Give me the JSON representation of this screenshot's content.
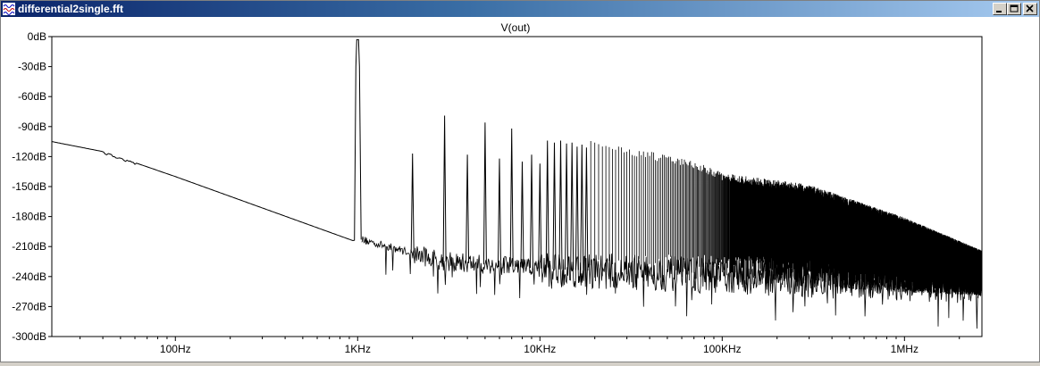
{
  "window": {
    "title": "differential2single.fft",
    "controls": [
      "minimize",
      "maximize",
      "close"
    ]
  },
  "chart_data": {
    "type": "line",
    "title": "V(out)",
    "xscale": "log",
    "xlim": [
      21,
      2660000
    ],
    "ylim": [
      -300,
      0
    ],
    "grid": false,
    "y_ticks": [
      0,
      -30,
      -60,
      -90,
      -120,
      -150,
      -180,
      -210,
      -240,
      -270,
      -300
    ],
    "y_tick_labels": [
      "0dB",
      "-30dB",
      "-60dB",
      "-90dB",
      "-120dB",
      "-150dB",
      "-180dB",
      "-210dB",
      "-240dB",
      "-270dB",
      "-300dB"
    ],
    "x_ticks": [
      100,
      1000,
      10000,
      100000,
      1000000
    ],
    "x_tick_labels": [
      "100Hz",
      "1KHz",
      "10KHz",
      "100KHz",
      "1MHz"
    ],
    "fundamental_hz": 1000,
    "harmonic_peaks": [
      {
        "f": 1000,
        "db": -3
      },
      {
        "f": 2000,
        "db": -117
      },
      {
        "f": 3000,
        "db": -79
      },
      {
        "f": 4000,
        "db": -118
      },
      {
        "f": 5000,
        "db": -86
      },
      {
        "f": 6000,
        "db": -122
      },
      {
        "f": 7000,
        "db": -92
      },
      {
        "f": 8000,
        "db": -125
      },
      {
        "f": 9000,
        "db": -118
      },
      {
        "f": 10000,
        "db": -127
      },
      {
        "f": 11000,
        "db": -104
      },
      {
        "f": 12000,
        "db": -106
      },
      {
        "f": 13000,
        "db": -104
      },
      {
        "f": 14000,
        "db": -107
      },
      {
        "f": 15000,
        "db": -106
      },
      {
        "f": 16000,
        "db": -110
      },
      {
        "f": 17000,
        "db": -108
      },
      {
        "f": 18000,
        "db": -111
      }
    ],
    "noise_floor_curve": [
      {
        "f": 21,
        "db": -105
      },
      {
        "f": 40,
        "db": -115
      },
      {
        "f": 100,
        "db": -140
      },
      {
        "f": 940,
        "db": -204
      },
      {
        "f": 1050,
        "db": -203
      },
      {
        "f": 3000,
        "db": -225
      },
      {
        "f": 10000,
        "db": -232
      },
      {
        "f": 2660000,
        "db": -250
      }
    ],
    "harmonic_envelope": [
      {
        "f": 20000,
        "db": -108
      },
      {
        "f": 70000,
        "db": -128
      },
      {
        "f": 100000,
        "db": -140
      },
      {
        "f": 300000,
        "db": -152
      },
      {
        "f": 1000000,
        "db": -185
      },
      {
        "f": 2660000,
        "db": -218
      }
    ]
  }
}
